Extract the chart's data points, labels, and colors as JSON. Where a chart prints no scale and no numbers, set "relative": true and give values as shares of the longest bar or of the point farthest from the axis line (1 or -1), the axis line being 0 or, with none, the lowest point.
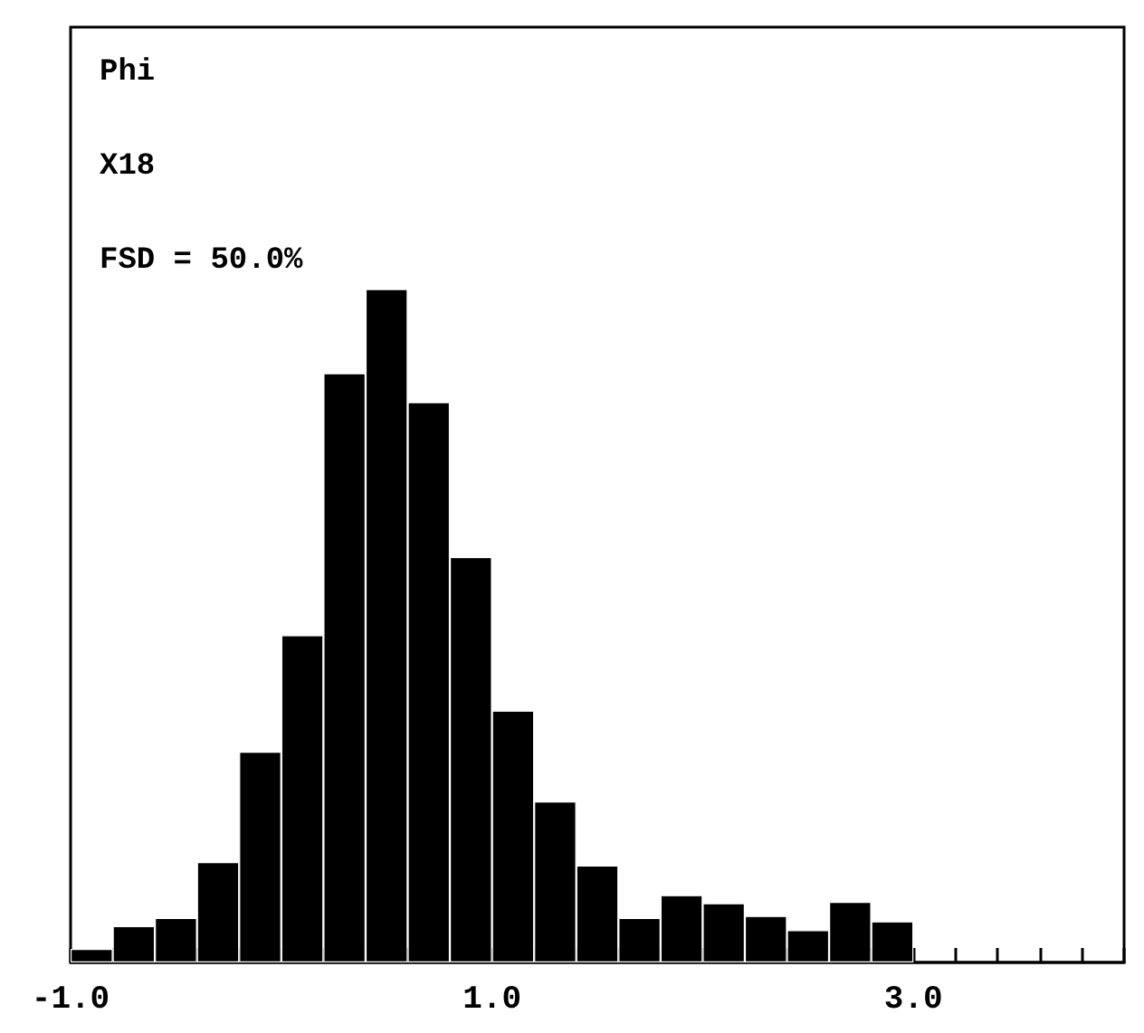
{
  "chart_data": {
    "type": "bar",
    "relative": true,
    "color": "#000000",
    "annotations": [
      "Phi",
      "X18",
      "FSD = 50.0%"
    ],
    "x": [
      -0.9,
      -0.7,
      -0.5,
      -0.3,
      -0.1,
      0.1,
      0.3,
      0.5,
      0.7,
      0.9,
      1.1,
      1.3,
      1.5,
      1.7,
      1.9,
      2.1,
      2.3,
      2.5,
      2.7,
      2.9
    ],
    "values": [
      0.02,
      0.054,
      0.066,
      0.149,
      0.313,
      0.486,
      0.875,
      1,
      0.832,
      0.602,
      0.374,
      0.239,
      0.144,
      0.066,
      0.1,
      0.088,
      0.069,
      0.048,
      0.09,
      0.061
    ],
    "xlim": [
      -1.0,
      4.0
    ],
    "xticks": [
      {
        "value": -1.0,
        "label": "-1.0"
      },
      {
        "value": -0.8,
        "label": null
      },
      {
        "value": -0.6,
        "label": null
      },
      {
        "value": -0.4,
        "label": null
      },
      {
        "value": -0.2,
        "label": null
      },
      {
        "value": 0.0,
        "label": null
      },
      {
        "value": 0.2,
        "label": null
      },
      {
        "value": 0.4,
        "label": null
      },
      {
        "value": 0.6,
        "label": null
      },
      {
        "value": 0.8,
        "label": null
      },
      {
        "value": 1.0,
        "label": "1.0"
      },
      {
        "value": 1.2,
        "label": null
      },
      {
        "value": 1.4,
        "label": null
      },
      {
        "value": 1.6,
        "label": null
      },
      {
        "value": 1.8,
        "label": null
      },
      {
        "value": 2.0,
        "label": null
      },
      {
        "value": 2.2,
        "label": null
      },
      {
        "value": 2.4,
        "label": null
      },
      {
        "value": 2.6,
        "label": null
      },
      {
        "value": 2.8,
        "label": null
      },
      {
        "value": 3.0,
        "label": "3.0"
      },
      {
        "value": 3.2,
        "label": null
      },
      {
        "value": 3.4,
        "label": null
      },
      {
        "value": 3.6,
        "label": null
      },
      {
        "value": 3.8,
        "label": null
      },
      {
        "value": 4.0,
        "label": null
      }
    ],
    "grid": false
  }
}
